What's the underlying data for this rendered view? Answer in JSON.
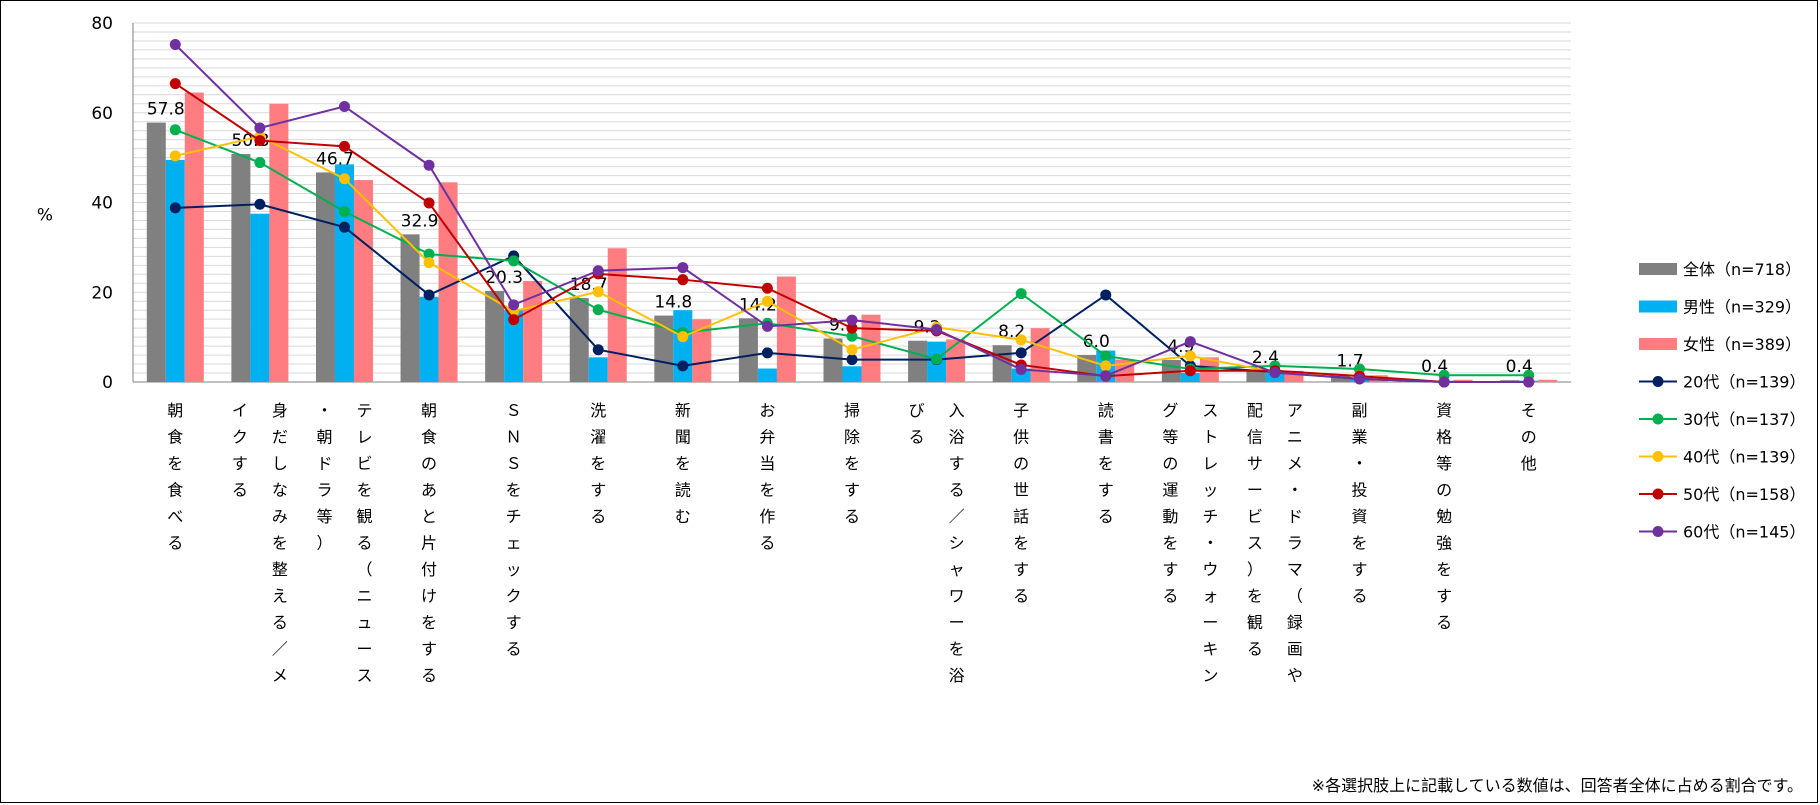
{
  "chart_data": {
    "type": "bar",
    "ylabel": "%",
    "ylim": [
      0,
      80
    ],
    "yticks": [
      0,
      20,
      40,
      60,
      80
    ],
    "grid": true,
    "legend_position": "right",
    "categories": [
      [
        "朝",
        "食",
        "を",
        "食",
        "べ",
        "る"
      ],
      [
        "身",
        "だ",
        "し",
        "な",
        "み",
        "を",
        "整",
        "え",
        "る",
        "／",
        "メ",
        "イ",
        "ク",
        "す",
        "る"
      ],
      [
        "テ",
        "レ",
        "ビ",
        "を",
        "観",
        "る",
        "（",
        "ニ",
        "ュ",
        "ー",
        "ス",
        "・",
        "朝",
        "ド",
        "ラ",
        "等",
        "）"
      ],
      [
        "朝",
        "食",
        "の",
        "あ",
        "と",
        "片",
        "付",
        "け",
        "を",
        "す",
        "る"
      ],
      [
        "Ｓ",
        "Ｎ",
        "Ｓ",
        "を",
        "チ",
        "ェ",
        "ッ",
        "ク",
        "す",
        "る"
      ],
      [
        "洗",
        "濯",
        "を",
        "す",
        "る"
      ],
      [
        "新",
        "聞",
        "を",
        "読",
        "む"
      ],
      [
        "お",
        "弁",
        "当",
        "を",
        "作",
        "る"
      ],
      [
        "掃",
        "除",
        "を",
        "す",
        "る"
      ],
      [
        "入",
        "浴",
        "す",
        "る",
        "／",
        "シ",
        "ャ",
        "ワ",
        "ー",
        "を",
        "浴",
        "び",
        "る"
      ],
      [
        "子",
        "供",
        "の",
        "世",
        "話",
        "を",
        "す",
        "る"
      ],
      [
        "読",
        "書",
        "を",
        "す",
        "る"
      ],
      [
        "ス",
        "ト",
        "レ",
        "ッ",
        "チ",
        "・",
        "ウ",
        "ォ",
        "ー",
        "キ",
        "ン",
        "グ",
        "等",
        "の",
        "運",
        "動",
        "を",
        "す",
        "る"
      ],
      [
        "ア",
        "ニ",
        "メ",
        "・",
        "ド",
        "ラ",
        "マ",
        "（",
        "録",
        "画",
        "や",
        "配",
        "信",
        "サ",
        "ー",
        "ビ",
        "ス",
        "）",
        "を",
        "観",
        "る"
      ],
      [
        "副",
        "業",
        "・",
        "投",
        "資",
        "を",
        "す",
        "る"
      ],
      [
        "資",
        "格",
        "等",
        "の",
        "勉",
        "強",
        "を",
        "す",
        "る"
      ],
      [
        "そ",
        "の",
        "他"
      ]
    ],
    "bar_series": [
      {
        "name": "全体（n=718）",
        "color": "#808080",
        "values": [
          57.8,
          50.8,
          46.7,
          32.9,
          20.3,
          18.7,
          14.8,
          14.2,
          9.7,
          9.2,
          8.2,
          6.0,
          4.9,
          2.4,
          1.7,
          0.4,
          0.4
        ]
      },
      {
        "name": "男性（n=329）",
        "color": "#00b0f0",
        "values": [
          49.5,
          37.5,
          48.5,
          19.0,
          16.0,
          5.5,
          16.0,
          3.0,
          3.5,
          9.0,
          3.0,
          7.0,
          2.0,
          2.0,
          1.0,
          0.3,
          0.3
        ]
      },
      {
        "name": "女性（n=389）",
        "color": "#ff7c80",
        "values": [
          64.5,
          62.0,
          45.0,
          44.5,
          22.5,
          29.8,
          14.0,
          23.5,
          15.0,
          9.5,
          12.0,
          5.0,
          5.5,
          2.5,
          1.5,
          0.5,
          0.5
        ]
      }
    ],
    "line_series": [
      {
        "name": "20代（n=139）",
        "color": "#002060",
        "values": [
          38.8,
          39.6,
          34.5,
          19.4,
          28.1,
          7.2,
          3.6,
          6.5,
          5.0,
          5.0,
          6.5,
          19.4,
          3.6,
          2.2,
          0.7,
          0.0,
          0.0
        ]
      },
      {
        "name": "30代（n=137）",
        "color": "#00b050",
        "values": [
          56.2,
          48.9,
          38.0,
          28.5,
          27.0,
          16.1,
          11.0,
          13.1,
          10.2,
          5.1,
          19.7,
          5.8,
          2.9,
          3.6,
          2.9,
          1.5,
          1.5
        ]
      },
      {
        "name": "40代（n=139）",
        "color": "#ffc000",
        "values": [
          50.4,
          54.7,
          45.3,
          26.6,
          15.8,
          20.1,
          10.1,
          18.0,
          7.2,
          12.2,
          9.4,
          3.6,
          5.8,
          2.2,
          1.4,
          0.0,
          0.0
        ]
      },
      {
        "name": "50代（n=158）",
        "color": "#c00000",
        "values": [
          66.5,
          53.8,
          52.5,
          39.9,
          13.9,
          24.1,
          22.8,
          20.9,
          12.0,
          11.4,
          3.8,
          1.3,
          2.5,
          2.5,
          1.3,
          0.0,
          0.0
        ]
      },
      {
        "name": "60代（n=145）",
        "color": "#7030a0",
        "values": [
          75.2,
          56.6,
          61.4,
          48.3,
          17.2,
          24.8,
          25.5,
          12.4,
          13.8,
          11.7,
          2.8,
          1.4,
          9.0,
          2.1,
          0.7,
          0.0,
          0.0
        ]
      }
    ],
    "data_labels": [
      "57.8",
      "50.8",
      "46.7",
      "32.9",
      "20.3",
      "18.7",
      "14.8",
      "14.2",
      "9.7",
      "9.2",
      "8.2",
      "6.0",
      "4.9",
      "2.4",
      "1.7",
      "0.4",
      "0.4"
    ]
  },
  "footnote": "※各選択肢上に記載している数値は、回答者全体に占める割合です。"
}
